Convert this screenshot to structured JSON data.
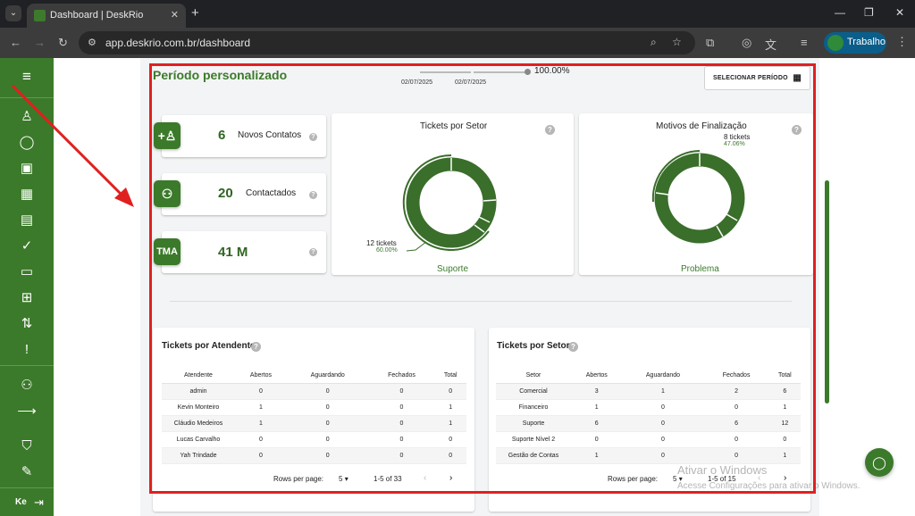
{
  "browser": {
    "tab_title": "Dashboard | DeskRio",
    "url": "app.deskrio.com.br/dashboard",
    "profile_name": "Trabalho"
  },
  "sidebar": {
    "user_initials": "Ke",
    "icons": [
      "menu-icon",
      "user-icon",
      "chat-icon",
      "contact-card-icon",
      "dashboard-grid-icon",
      "kanban-icon",
      "check-circle-icon",
      "calendar-icon",
      "message-plus-icon",
      "flow-icon",
      "alert-message-icon",
      "users-icon",
      "arrow-right-icon",
      "shield-icon",
      "edit-icon",
      "logout-icon"
    ]
  },
  "header": {
    "title": "Período personalizado",
    "slider_percent": "100.00%",
    "date_start": "02/07/2025",
    "date_end": "02/07/2025",
    "select_button": "SELECIONAR PERÍODO"
  },
  "stats": [
    {
      "value": "6",
      "label": "Novos Contatos",
      "icon": "add-contact-icon"
    },
    {
      "value": "20",
      "label": "Contactados",
      "icon": "group-icon"
    },
    {
      "value": "41 M",
      "label": "",
      "icon_text": "TMA"
    }
  ],
  "charts": {
    "setor": {
      "title": "Tickets por Setor",
      "label_count": "12 tickets",
      "label_pct": "60.00%",
      "footer": "Suporte"
    },
    "motivos": {
      "title": "Motivos de Finalização",
      "label_count": "8 tickets",
      "label_pct": "47.06%",
      "footer": "Problema"
    }
  },
  "atendente_table": {
    "title": "Tickets por Atendente",
    "columns": [
      "Atendente",
      "Abertos",
      "Aguardando",
      "Fechados",
      "Total"
    ],
    "rows": [
      [
        "admin",
        "0",
        "0",
        "0",
        "0"
      ],
      [
        "Kevin Monteiro",
        "1",
        "0",
        "0",
        "1"
      ],
      [
        "Cláudio Medeiros",
        "1",
        "0",
        "0",
        "1"
      ],
      [
        "Lucas Carvalho",
        "0",
        "0",
        "0",
        "0"
      ],
      [
        "Yah Trindade",
        "0",
        "0",
        "0",
        "0"
      ]
    ],
    "rows_per_page_label": "Rows per page:",
    "rows_per_page": "5",
    "range": "1-5 of 33"
  },
  "setor_table": {
    "title": "Tickets por Setor",
    "columns": [
      "Setor",
      "Abertos",
      "Aguardando",
      "Fechados",
      "Total"
    ],
    "rows": [
      [
        "Comercial",
        "3",
        "1",
        "2",
        "6"
      ],
      [
        "Financeiro",
        "1",
        "0",
        "0",
        "1"
      ],
      [
        "Suporte",
        "6",
        "0",
        "6",
        "12"
      ],
      [
        "Suporte Nível 2",
        "0",
        "0",
        "0",
        "0"
      ],
      [
        "Gestão de Contas",
        "1",
        "0",
        "0",
        "1"
      ]
    ],
    "rows_per_page_label": "Rows per page:",
    "rows_per_page": "5",
    "range": "1-5 of 15"
  },
  "windows_watermark": {
    "line1": "Ativar o Windows",
    "line2": "Acesse Configurações para ativar o Windows."
  },
  "colors": {
    "brand_green": "#3b7a2a",
    "annotation_red": "#e02020"
  }
}
